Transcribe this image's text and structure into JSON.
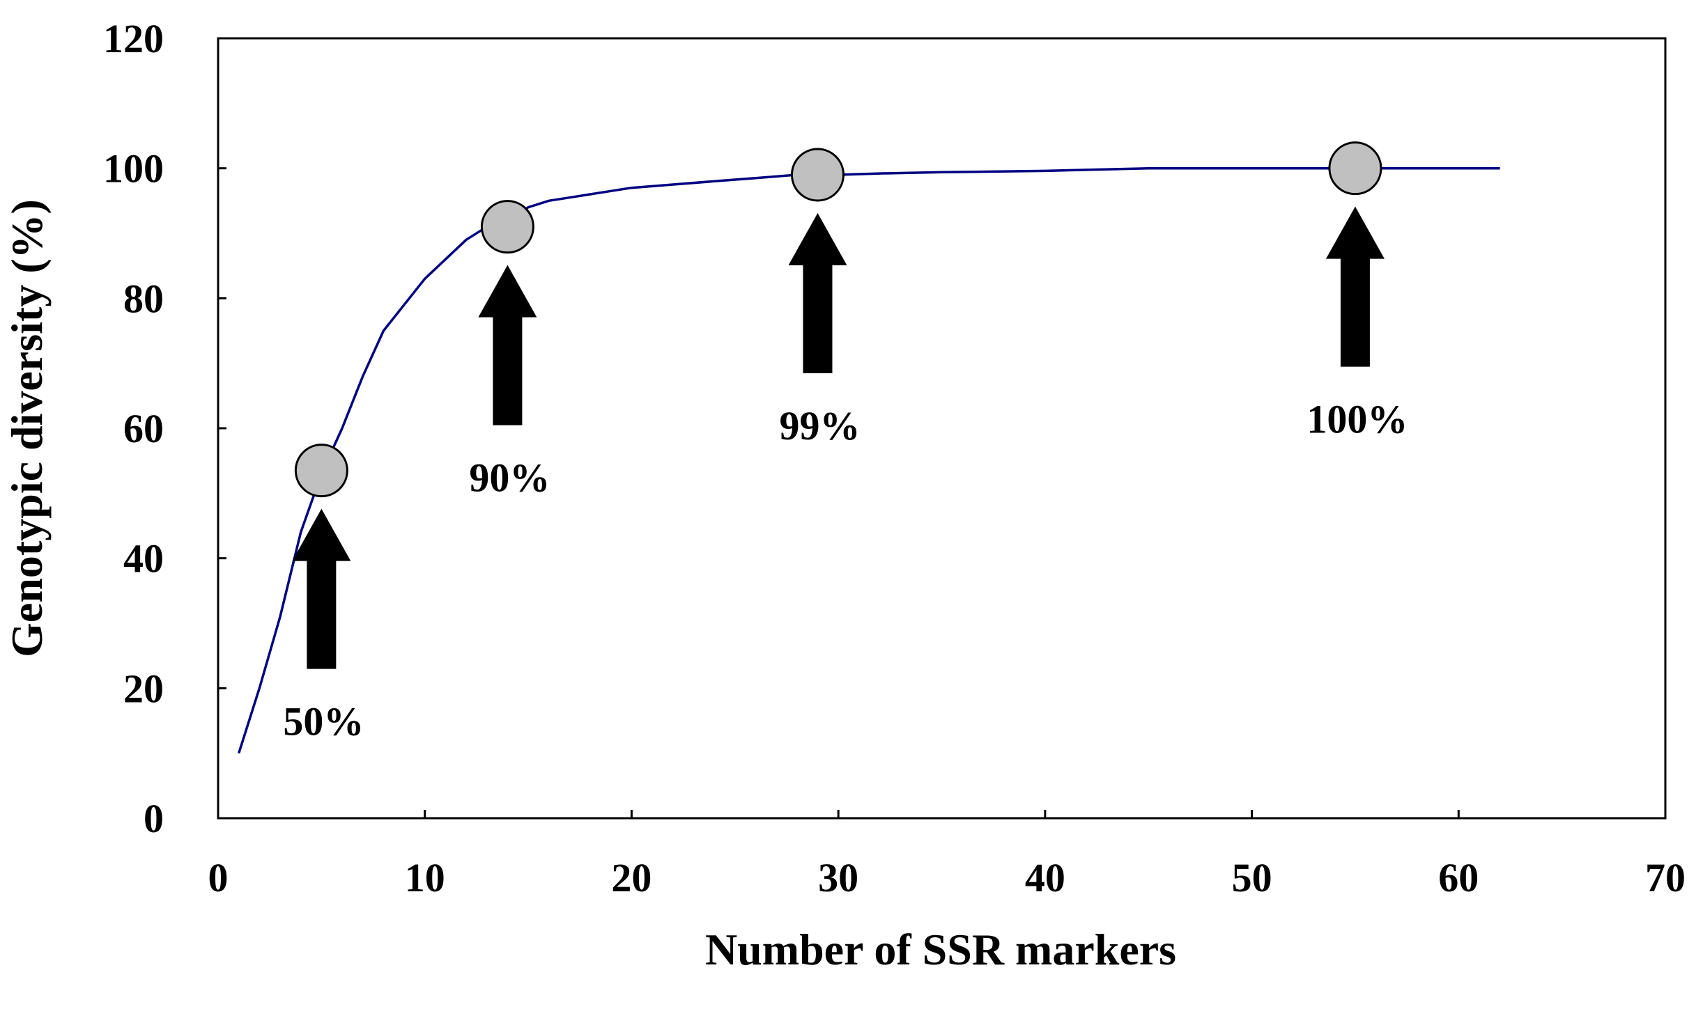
{
  "chart_data": {
    "type": "line",
    "title": "",
    "xlabel": "Number of SSR markers",
    "ylabel": "Genotypic diversity (%)",
    "xlim": [
      0,
      70
    ],
    "ylim": [
      0,
      120
    ],
    "x_ticks": [
      0,
      10,
      20,
      30,
      40,
      50,
      60,
      70
    ],
    "y_ticks": [
      0,
      20,
      40,
      60,
      80,
      100,
      120
    ],
    "grid": false,
    "legend": "none",
    "series": [
      {
        "color": "#000080",
        "x": [
          1,
          2,
          3,
          4,
          5,
          6,
          7,
          8,
          9,
          10,
          11,
          12,
          13,
          14,
          15,
          16,
          17,
          18,
          19,
          20,
          22,
          24,
          26,
          28,
          29,
          30,
          32,
          35,
          40,
          45,
          50,
          55,
          60,
          62
        ],
        "y": [
          10,
          20,
          31,
          44,
          53,
          60,
          68,
          75,
          79,
          83,
          86,
          89,
          91,
          92,
          94,
          95,
          95.5,
          96,
          96.5,
          97,
          97.5,
          98,
          98.5,
          99,
          99,
          99,
          99.2,
          99.4,
          99.6,
          100,
          100,
          100,
          100,
          100
        ]
      }
    ],
    "markers": [
      {
        "x": 5,
        "y": 53.5,
        "label": "50%"
      },
      {
        "x": 14,
        "y": 91,
        "label": "90%"
      },
      {
        "x": 29,
        "y": 99,
        "label": "99%"
      },
      {
        "x": 55,
        "y": 100,
        "label": "100%"
      }
    ],
    "colors": {
      "line": "#000080",
      "marker_fill": "#c0c0c0",
      "marker_stroke": "#000000",
      "arrow": "#000000",
      "axes": "#000000"
    }
  }
}
